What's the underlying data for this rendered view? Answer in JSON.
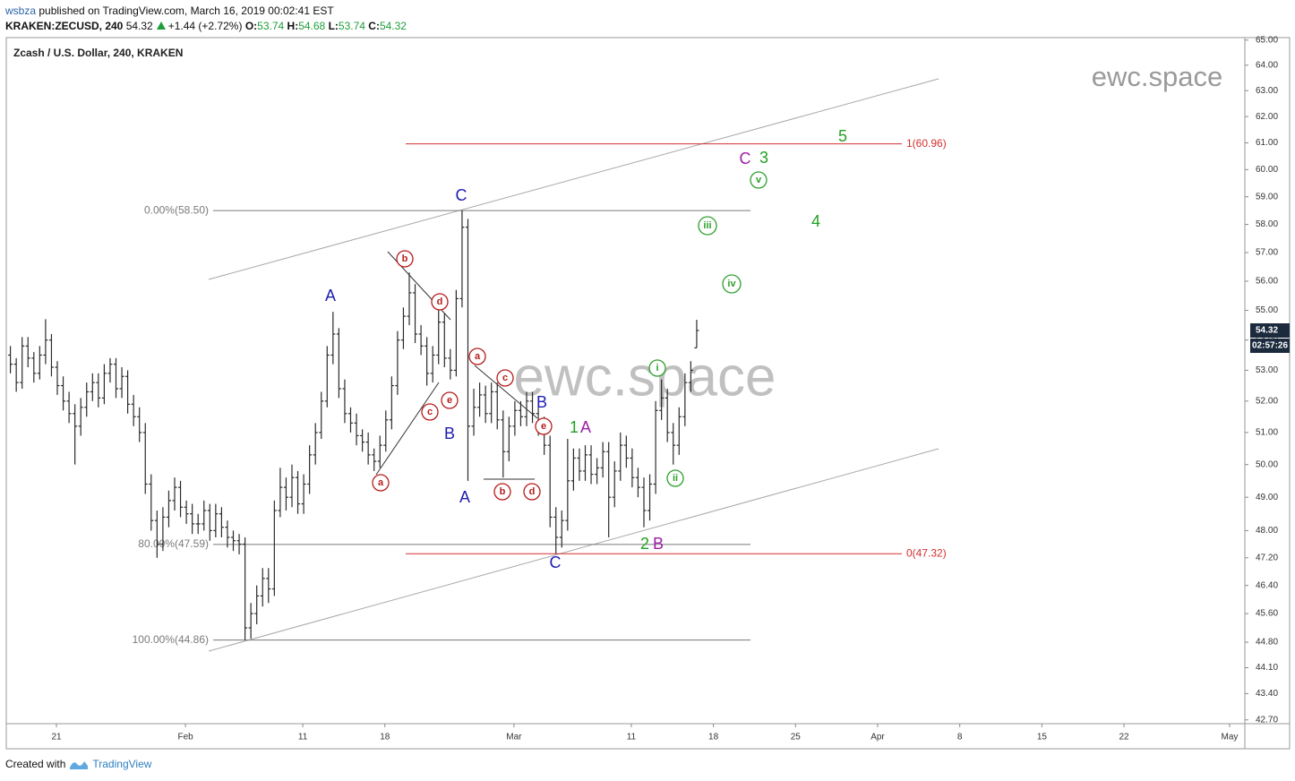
{
  "header": {
    "author": "wsbza",
    "published": "published on TradingView.com, March 16, 2019 00:02:41 EST",
    "symbol": "KRAKEN:ZECUSD, 240",
    "change": "+1.44 (+2.72%)",
    "o": "O:",
    "h": "H:",
    "l": "L:",
    "c": "C:"
  },
  "footer": {
    "created": "Created with",
    "brand": "TradingView"
  },
  "chart_data": {
    "type": "ohlc",
    "title": "Zcash / U.S. Dollar, 240, KRAKEN",
    "watermark": "ewc.space",
    "countdown": "02:57:26",
    "color": "#2b2b2b",
    "log_scale": true,
    "grid": false,
    "xlim": [
      "2019-01-16T17:24",
      "2019-05-02T07:12"
    ],
    "xticks": [
      {
        "value": "2019-01-21T00:00",
        "label": "21"
      },
      {
        "value": "2019-02-01T00:00",
        "label": "Feb"
      },
      {
        "value": "2019-02-11T00:00",
        "label": "11"
      },
      {
        "value": "2019-02-18T00:00",
        "label": "18"
      },
      {
        "value": "2019-03-01T00:00",
        "label": "Mar"
      },
      {
        "value": "2019-03-11T00:00",
        "label": "11"
      },
      {
        "value": "2019-03-18T00:00",
        "label": "18"
      },
      {
        "value": "2019-03-25T00:00",
        "label": "25"
      },
      {
        "value": "2019-04-01T00:00",
        "label": "Apr"
      },
      {
        "value": "2019-04-08T00:00",
        "label": "8"
      },
      {
        "value": "2019-04-15T00:00",
        "label": "15"
      },
      {
        "value": "2019-04-22T00:00",
        "label": "22"
      },
      {
        "value": "2019-05-01T00:00",
        "label": "May"
      }
    ],
    "ylim": [
      42.6,
      65.1
    ],
    "yticks": [
      {
        "value": 65,
        "label": "65.00"
      },
      {
        "value": 64,
        "label": "64.00"
      },
      {
        "value": 63,
        "label": "63.00"
      },
      {
        "value": 62,
        "label": "62.00"
      },
      {
        "value": 61,
        "label": "61.00"
      },
      {
        "value": 60,
        "label": "60.00"
      },
      {
        "value": 59,
        "label": "59.00"
      },
      {
        "value": 58,
        "label": "58.00"
      },
      {
        "value": 57,
        "label": "57.00"
      },
      {
        "value": 56,
        "label": "56.00"
      },
      {
        "value": 55,
        "label": "55.00"
      },
      {
        "value": 54,
        "label": "54.00"
      },
      {
        "value": 53,
        "label": "53.00"
      },
      {
        "value": 52,
        "label": "52.00"
      },
      {
        "value": 51,
        "label": "51.00"
      },
      {
        "value": 50,
        "label": "50.00"
      },
      {
        "value": 49,
        "label": "49.00"
      },
      {
        "value": 48,
        "label": "48.00"
      },
      {
        "value": 47.2,
        "label": "47.20"
      },
      {
        "value": 46.4,
        "label": "46.40"
      },
      {
        "value": 45.6,
        "label": "45.60"
      },
      {
        "value": 44.8,
        "label": "44.80"
      },
      {
        "value": 44.1,
        "label": "44.10"
      },
      {
        "value": 43.4,
        "label": "43.40"
      },
      {
        "value": 42.7,
        "label": "42.70"
      }
    ],
    "x": [
      "2019-01-17T00:00",
      "2019-01-17T12:00",
      "2019-01-18T00:00",
      "2019-01-18T12:00",
      "2019-01-19T00:00",
      "2019-01-19T12:00",
      "2019-01-20T00:00",
      "2019-01-20T12:00",
      "2019-01-21T00:00",
      "2019-01-21T12:00",
      "2019-01-22T00:00",
      "2019-01-22T12:00",
      "2019-01-23T00:00",
      "2019-01-23T12:00",
      "2019-01-24T00:00",
      "2019-01-24T12:00",
      "2019-01-25T00:00",
      "2019-01-25T12:00",
      "2019-01-26T00:00",
      "2019-01-26T12:00",
      "2019-01-27T00:00",
      "2019-01-27T12:00",
      "2019-01-28T00:00",
      "2019-01-28T12:00",
      "2019-01-29T00:00",
      "2019-01-29T12:00",
      "2019-01-30T00:00",
      "2019-01-30T12:00",
      "2019-01-31T00:00",
      "2019-01-31T12:00",
      "2019-02-01T00:00",
      "2019-02-01T12:00",
      "2019-02-02T00:00",
      "2019-02-02T12:00",
      "2019-02-03T00:00",
      "2019-02-03T12:00",
      "2019-02-04T00:00",
      "2019-02-04T12:00",
      "2019-02-05T00:00",
      "2019-02-05T12:00",
      "2019-02-06T00:00",
      "2019-02-06T12:00",
      "2019-02-07T00:00",
      "2019-02-07T12:00",
      "2019-02-08T00:00",
      "2019-02-08T12:00",
      "2019-02-09T00:00",
      "2019-02-09T12:00",
      "2019-02-10T00:00",
      "2019-02-10T12:00",
      "2019-02-11T00:00",
      "2019-02-11T12:00",
      "2019-02-12T00:00",
      "2019-02-12T12:00",
      "2019-02-13T00:00",
      "2019-02-13T12:00",
      "2019-02-14T00:00",
      "2019-02-14T12:00",
      "2019-02-15T00:00",
      "2019-02-15T12:00",
      "2019-02-16T00:00",
      "2019-02-16T12:00",
      "2019-02-17T00:00",
      "2019-02-17T12:00",
      "2019-02-18T00:00",
      "2019-02-18T12:00",
      "2019-02-19T00:00",
      "2019-02-19T12:00",
      "2019-02-20T00:00",
      "2019-02-20T12:00",
      "2019-02-21T00:00",
      "2019-02-21T12:00",
      "2019-02-22T00:00",
      "2019-02-22T12:00",
      "2019-02-23T00:00",
      "2019-02-23T12:00",
      "2019-02-24T00:00",
      "2019-02-24T12:00",
      "2019-02-25T00:00",
      "2019-02-25T12:00",
      "2019-02-26T00:00",
      "2019-02-26T12:00",
      "2019-02-27T00:00",
      "2019-02-27T12:00",
      "2019-02-28T00:00",
      "2019-02-28T12:00",
      "2019-03-01T00:00",
      "2019-03-01T12:00",
      "2019-03-02T00:00",
      "2019-03-02T12:00",
      "2019-03-03T00:00",
      "2019-03-03T12:00",
      "2019-03-04T00:00",
      "2019-03-04T12:00",
      "2019-03-05T00:00",
      "2019-03-05T12:00",
      "2019-03-06T00:00",
      "2019-03-06T12:00",
      "2019-03-07T00:00",
      "2019-03-07T12:00",
      "2019-03-08T00:00",
      "2019-03-08T12:00",
      "2019-03-09T00:00",
      "2019-03-09T12:00",
      "2019-03-10T00:00",
      "2019-03-10T12:00",
      "2019-03-11T00:00",
      "2019-03-11T12:00",
      "2019-03-12T00:00",
      "2019-03-12T12:00",
      "2019-03-13T00:00",
      "2019-03-13T12:00",
      "2019-03-14T00:00",
      "2019-03-14T12:00",
      "2019-03-15T00:00",
      "2019-03-15T12:00",
      "2019-03-16T00:00",
      "2019-03-16T12:00"
    ],
    "ohlc": [
      [
        53.5,
        53.8,
        52.9,
        53.2
      ],
      [
        53.2,
        53.4,
        52.3,
        52.6
      ],
      [
        52.6,
        54.1,
        52.4,
        53.8
      ],
      [
        53.8,
        54.1,
        53.1,
        53.4
      ],
      [
        53.4,
        53.6,
        52.6,
        52.9
      ],
      [
        52.9,
        53.8,
        52.7,
        53.5
      ],
      [
        53.5,
        54.7,
        53.2,
        54.0
      ],
      [
        54.0,
        54.2,
        52.8,
        53.1
      ],
      [
        53.1,
        53.3,
        52.2,
        52.5
      ],
      [
        52.5,
        52.8,
        51.7,
        52.0
      ],
      [
        52.0,
        52.3,
        51.3,
        51.6
      ],
      [
        51.6,
        51.9,
        50.0,
        51.2
      ],
      [
        51.2,
        52.1,
        50.9,
        51.8
      ],
      [
        51.8,
        52.6,
        51.5,
        52.3
      ],
      [
        52.3,
        52.9,
        52.0,
        52.6
      ],
      [
        52.6,
        52.9,
        51.8,
        52.1
      ],
      [
        52.1,
        53.2,
        51.9,
        52.9
      ],
      [
        52.9,
        53.4,
        52.6,
        53.2
      ],
      [
        53.2,
        53.4,
        52.1,
        52.4
      ],
      [
        52.4,
        53.1,
        52.1,
        52.8
      ],
      [
        52.8,
        53.0,
        51.6,
        51.9
      ],
      [
        51.9,
        52.2,
        51.2,
        51.5
      ],
      [
        51.5,
        51.8,
        50.7,
        51.0
      ],
      [
        51.0,
        51.3,
        49.1,
        49.4
      ],
      [
        49.4,
        49.7,
        48.0,
        48.3
      ],
      [
        48.3,
        48.6,
        47.2,
        47.6
      ],
      [
        47.6,
        48.7,
        47.4,
        48.4
      ],
      [
        48.4,
        49.2,
        48.1,
        48.9
      ],
      [
        48.9,
        49.6,
        48.6,
        49.3
      ],
      [
        49.3,
        49.5,
        48.4,
        48.7
      ],
      [
        48.7,
        48.9,
        48.2,
        48.5
      ],
      [
        48.5,
        48.8,
        47.9,
        48.2
      ],
      [
        48.2,
        48.5,
        47.9,
        48.2
      ],
      [
        48.2,
        48.9,
        48.0,
        48.6
      ],
      [
        48.6,
        48.8,
        47.7,
        48.0
      ],
      [
        48.0,
        48.8,
        47.8,
        48.5
      ],
      [
        48.5,
        48.7,
        47.8,
        48.1
      ],
      [
        48.1,
        48.3,
        47.5,
        47.8
      ],
      [
        47.8,
        48.0,
        47.4,
        47.7
      ],
      [
        47.7,
        47.9,
        47.3,
        47.6
      ],
      [
        47.6,
        47.8,
        44.86,
        45.2
      ],
      [
        45.2,
        45.9,
        44.9,
        45.6
      ],
      [
        45.6,
        46.4,
        45.3,
        46.1
      ],
      [
        46.1,
        46.9,
        45.8,
        46.6
      ],
      [
        46.6,
        46.9,
        45.9,
        46.3
      ],
      [
        46.3,
        48.9,
        46.1,
        48.6
      ],
      [
        48.6,
        49.9,
        48.4,
        49.3
      ],
      [
        49.3,
        49.6,
        48.6,
        49.0
      ],
      [
        49.0,
        50.0,
        48.7,
        49.6
      ],
      [
        49.6,
        49.8,
        48.5,
        48.8
      ],
      [
        48.8,
        49.7,
        48.5,
        49.4
      ],
      [
        49.4,
        50.6,
        49.1,
        50.3
      ],
      [
        50.3,
        51.3,
        50.0,
        51.0
      ],
      [
        51.0,
        52.3,
        50.8,
        52.0
      ],
      [
        52.0,
        53.8,
        51.8,
        53.5
      ],
      [
        53.5,
        54.95,
        53.2,
        54.2
      ],
      [
        54.2,
        54.4,
        52.1,
        52.4
      ],
      [
        52.4,
        52.7,
        51.3,
        51.6
      ],
      [
        51.6,
        51.8,
        51.0,
        51.3
      ],
      [
        51.3,
        51.6,
        50.6,
        50.9
      ],
      [
        50.9,
        51.1,
        50.4,
        50.7
      ],
      [
        50.7,
        51.0,
        50.0,
        50.3
      ],
      [
        50.3,
        50.5,
        49.8,
        50.1
      ],
      [
        50.1,
        50.9,
        49.9,
        50.6
      ],
      [
        50.6,
        51.7,
        50.4,
        51.4
      ],
      [
        51.4,
        52.8,
        51.1,
        52.5
      ],
      [
        52.5,
        54.3,
        52.2,
        54.0
      ],
      [
        54.0,
        55.1,
        53.7,
        54.8
      ],
      [
        54.8,
        56.3,
        54.5,
        55.6
      ],
      [
        55.6,
        55.9,
        53.9,
        54.2
      ],
      [
        54.2,
        54.5,
        53.5,
        53.8
      ],
      [
        53.8,
        54.1,
        52.5,
        52.9
      ],
      [
        52.9,
        53.8,
        52.6,
        53.5
      ],
      [
        53.5,
        55.0,
        53.2,
        54.6
      ],
      [
        54.6,
        54.9,
        53.1,
        53.4
      ],
      [
        53.4,
        53.7,
        52.7,
        53.0
      ],
      [
        53.0,
        55.7,
        52.8,
        55.4
      ],
      [
        55.4,
        58.5,
        55.1,
        57.9
      ],
      [
        57.9,
        58.2,
        49.5,
        51.2
      ],
      [
        51.2,
        52.4,
        50.9,
        51.8
      ],
      [
        51.8,
        52.6,
        51.5,
        52.2
      ],
      [
        52.2,
        52.5,
        51.3,
        51.6
      ],
      [
        51.6,
        52.6,
        51.3,
        52.3
      ],
      [
        52.3,
        52.6,
        51.1,
        51.4
      ],
      [
        51.4,
        51.7,
        49.6,
        50.4
      ],
      [
        50.4,
        51.5,
        50.1,
        51.2
      ],
      [
        51.2,
        52.0,
        50.9,
        51.7
      ],
      [
        51.7,
        52.0,
        51.2,
        51.5
      ],
      [
        51.5,
        52.3,
        51.2,
        52.0
      ],
      [
        52.0,
        52.3,
        51.3,
        51.6
      ],
      [
        51.6,
        51.9,
        50.9,
        51.2
      ],
      [
        51.2,
        51.5,
        50.3,
        50.6
      ],
      [
        50.6,
        50.9,
        48.1,
        48.4
      ],
      [
        48.4,
        48.7,
        47.32,
        47.8
      ],
      [
        47.8,
        48.6,
        47.5,
        48.3
      ],
      [
        48.3,
        50.8,
        48.0,
        49.5
      ],
      [
        49.5,
        50.5,
        49.2,
        50.2
      ],
      [
        50.2,
        50.5,
        49.5,
        49.8
      ],
      [
        49.8,
        50.6,
        49.5,
        50.3
      ],
      [
        50.3,
        50.6,
        49.4,
        49.7
      ],
      [
        49.7,
        50.2,
        49.4,
        49.9
      ],
      [
        49.9,
        50.7,
        49.6,
        50.4
      ],
      [
        50.4,
        50.7,
        47.8,
        49.0
      ],
      [
        49.0,
        50.1,
        48.7,
        49.8
      ],
      [
        49.8,
        51.0,
        49.5,
        50.6
      ],
      [
        50.6,
        50.9,
        49.9,
        50.2
      ],
      [
        50.2,
        50.5,
        49.3,
        49.6
      ],
      [
        49.6,
        49.9,
        49.0,
        49.3
      ],
      [
        49.3,
        49.6,
        48.1,
        48.6
      ],
      [
        48.6,
        49.7,
        48.3,
        49.4
      ],
      [
        49.4,
        52.0,
        49.1,
        51.7
      ],
      [
        51.7,
        52.7,
        51.4,
        52.1
      ],
      [
        52.1,
        52.4,
        50.7,
        51.0
      ],
      [
        51.0,
        51.3,
        50.0,
        50.6
      ],
      [
        50.6,
        51.8,
        50.3,
        51.5
      ],
      [
        51.5,
        52.9,
        51.2,
        52.6
      ],
      [
        52.6,
        53.3,
        52.3,
        53.0
      ],
      [
        53.74,
        54.68,
        53.74,
        54.32
      ]
    ],
    "fib_levels": [
      {
        "value": 58.5,
        "label": "0.00%(58.50)"
      },
      {
        "value": 47.59,
        "label": "80.00%(47.59)"
      },
      {
        "value": 44.86,
        "label": "100.00%(44.86)"
      }
    ],
    "extension_levels": [
      {
        "value": 60.96,
        "label": "1(60.96)"
      },
      {
        "value": 47.32,
        "label": "0(47.32)"
      }
    ],
    "annotations": [
      "A",
      "C",
      "B",
      "A",
      "B",
      "C",
      "b",
      "d",
      "a",
      "c",
      "e",
      "a",
      "c",
      "e",
      "b",
      "d",
      "iii",
      "iv",
      "v",
      "i",
      "ii",
      "5",
      "3",
      "4",
      "1",
      "2",
      "C",
      "A",
      "B"
    ]
  }
}
